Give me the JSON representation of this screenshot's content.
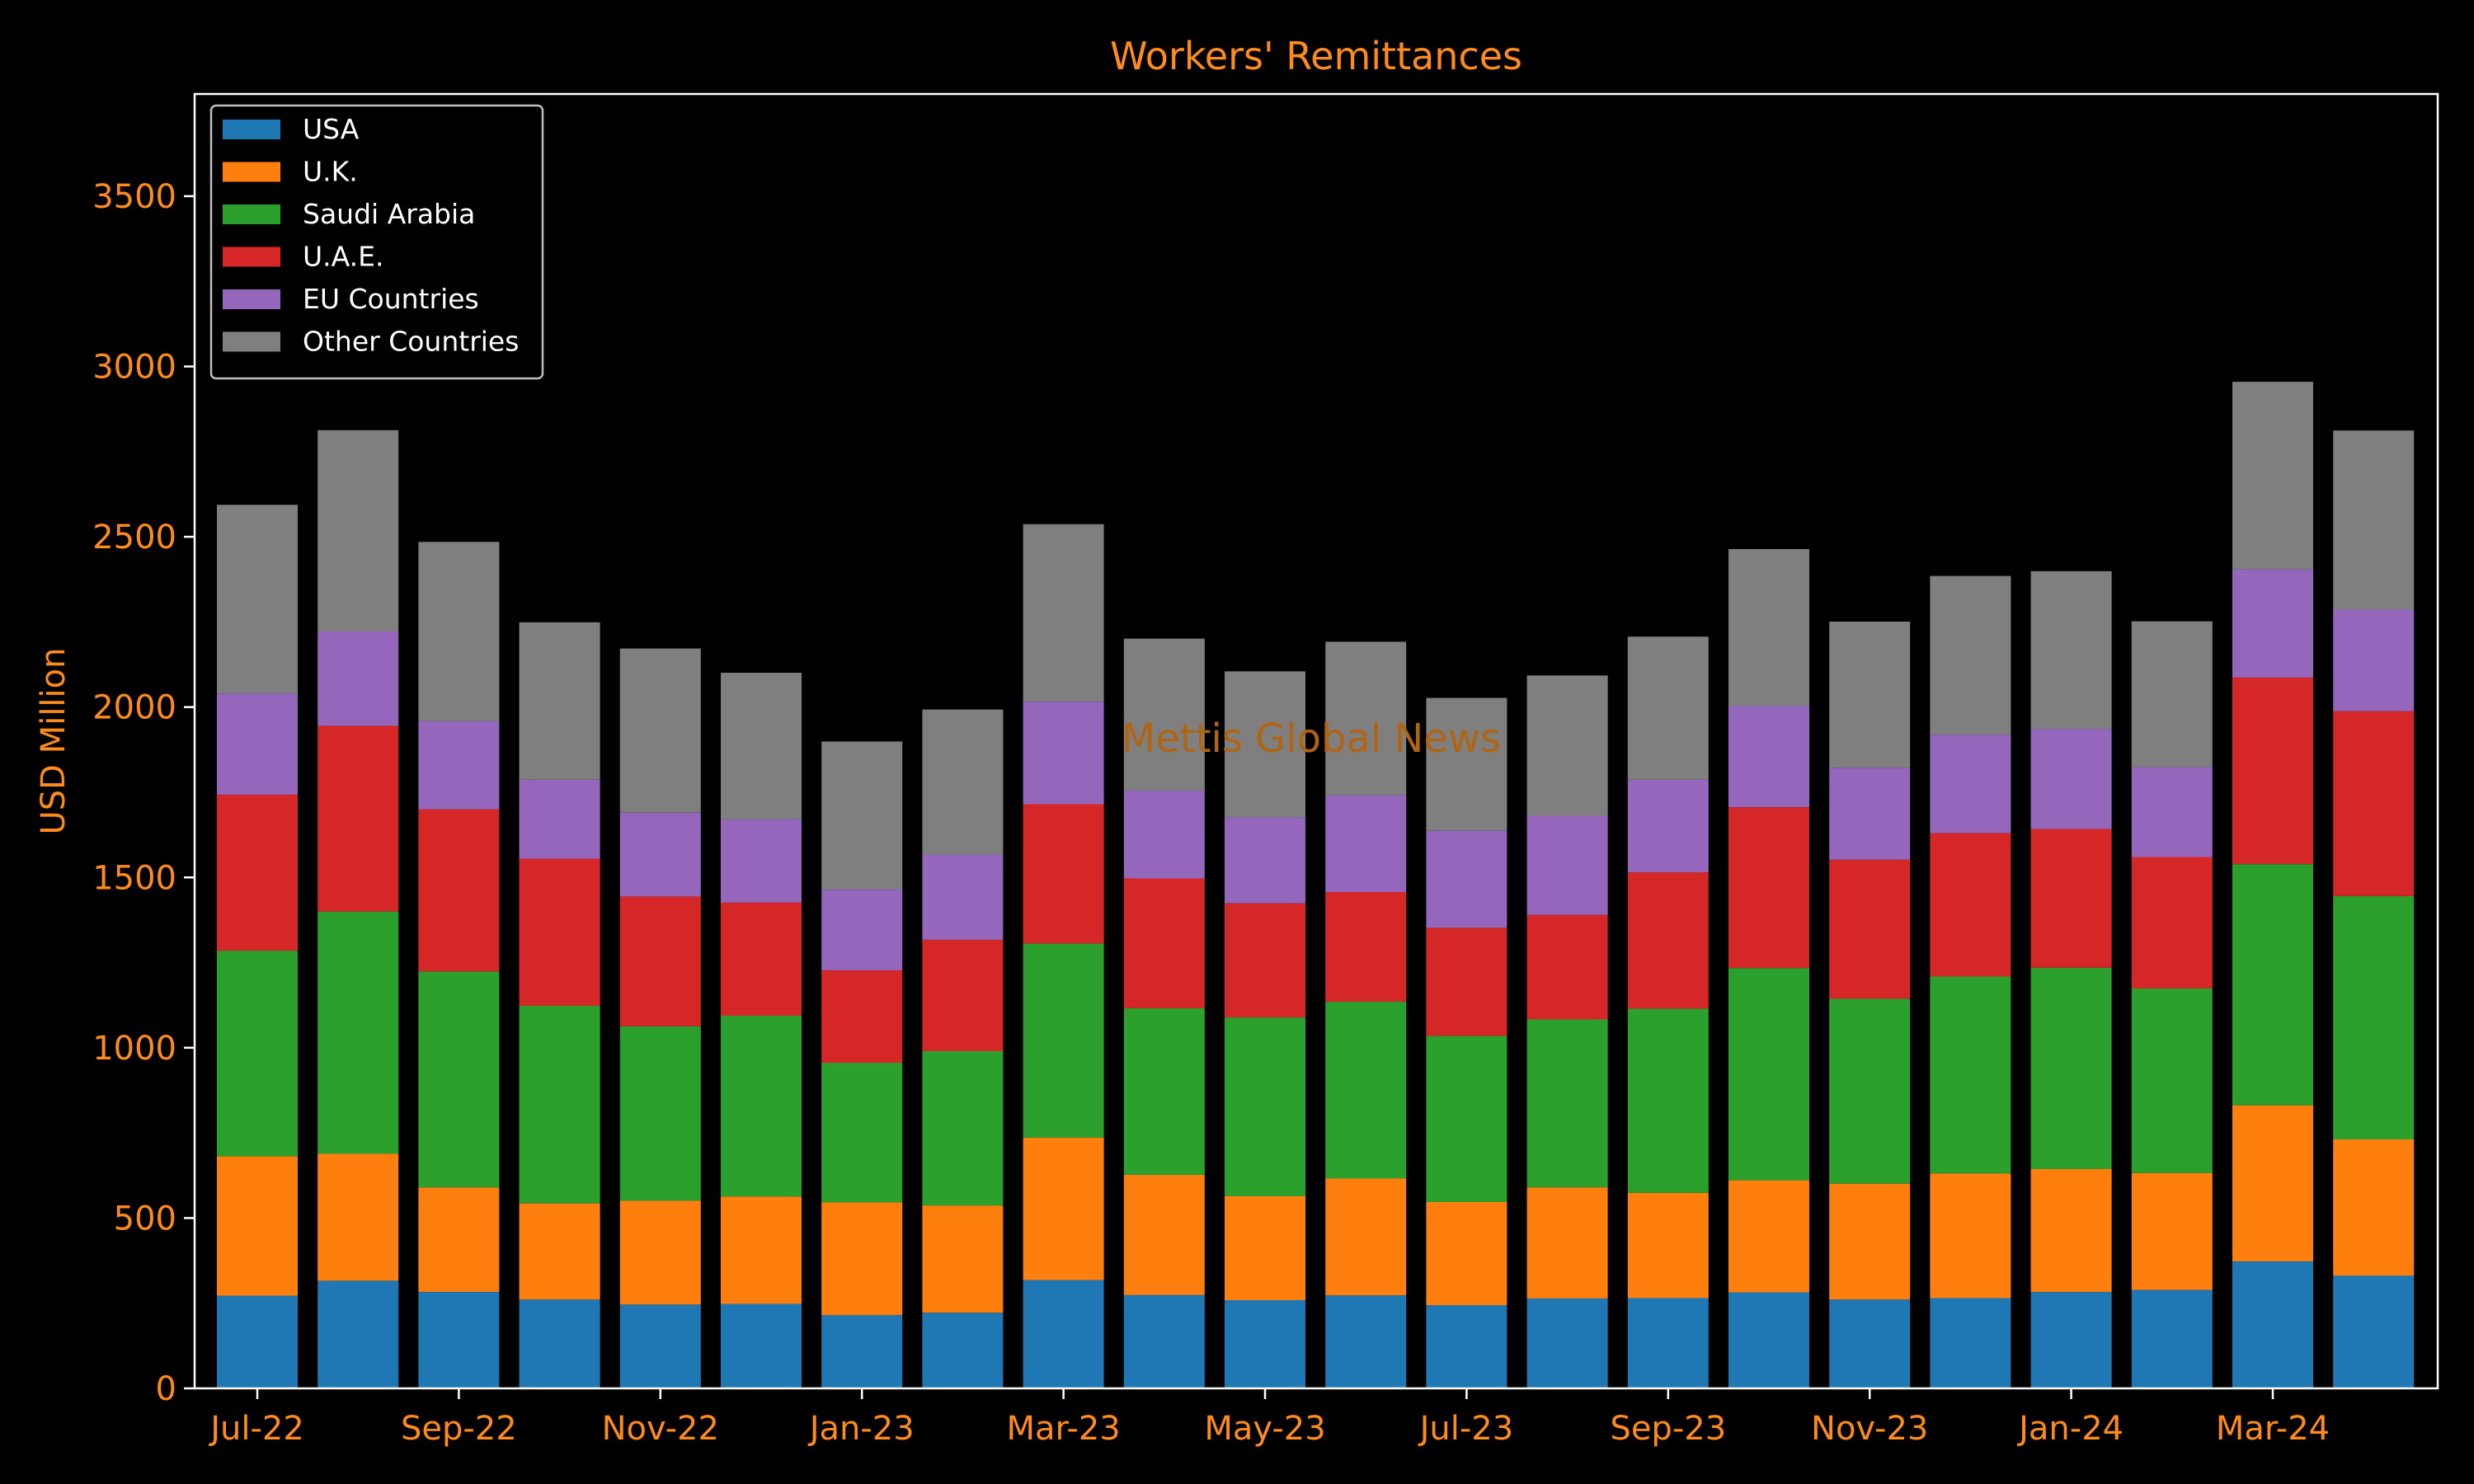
{
  "colors": {
    "background": "#000000",
    "axis": "#ffffff",
    "text_accent": "#ff8c1a",
    "watermark": "#b06512"
  },
  "watermark": "Mettis Global News",
  "chart_data": {
    "type": "bar",
    "stacked": true,
    "title": "Workers' Remittances",
    "xlabel": "",
    "ylabel": "USD Million",
    "ylim": [
      0,
      3800
    ],
    "yticks": [
      0,
      500,
      1000,
      1500,
      2000,
      2500,
      3000,
      3500
    ],
    "grid": false,
    "legend_position": "top-left",
    "categories": [
      "Jul-22",
      "Aug-22",
      "Sep-22",
      "Oct-22",
      "Nov-22",
      "Dec-22",
      "Jan-23",
      "Feb-23",
      "Mar-23",
      "Apr-23",
      "May-23",
      "Jun-23",
      "Jul-23",
      "Aug-23",
      "Sep-23",
      "Oct-23",
      "Nov-23",
      "Dec-23",
      "Jan-24",
      "Feb-24",
      "Mar-24",
      "Apr-24"
    ],
    "x_tick_labels": [
      "Jul-22",
      "Sep-22",
      "Nov-22",
      "Jan-23",
      "Mar-23",
      "May-23",
      "Jul-23",
      "Sep-23",
      "Nov-23",
      "Jan-24",
      "Mar-24"
    ],
    "series": [
      {
        "name": "USA",
        "color": "#1f77b4",
        "values": [
          272,
          316,
          283,
          261,
          246,
          248,
          215,
          222,
          318,
          274,
          259,
          273,
          244,
          264,
          265,
          282,
          261,
          265,
          283,
          289,
          373,
          331
        ]
      },
      {
        "name": "U.K.",
        "color": "#ff7f0e",
        "values": [
          409,
          373,
          307,
          282,
          305,
          315,
          331,
          315,
          418,
          353,
          305,
          343,
          303,
          326,
          309,
          329,
          340,
          366,
          361,
          343,
          458,
          400
        ]
      },
      {
        "name": "Saudi Arabia",
        "color": "#2ca02c",
        "values": [
          604,
          711,
          634,
          580,
          512,
          531,
          410,
          453,
          570,
          489,
          525,
          519,
          488,
          493,
          541,
          623,
          543,
          578,
          591,
          542,
          708,
          714
        ]
      },
      {
        "name": "U.A.E.",
        "color": "#d62728",
        "values": [
          458,
          545,
          476,
          432,
          381,
          332,
          271,
          327,
          409,
          381,
          335,
          322,
          317,
          307,
          400,
          472,
          408,
          421,
          407,
          386,
          548,
          543
        ]
      },
      {
        "name": "EU Countries",
        "color": "#9467bd",
        "values": [
          297,
          277,
          259,
          232,
          246,
          245,
          237,
          250,
          301,
          258,
          253,
          284,
          285,
          291,
          272,
          297,
          270,
          289,
          294,
          264,
          317,
          298
        ]
      },
      {
        "name": "Other Countries",
        "color": "#7f7f7f",
        "values": [
          554,
          591,
          526,
          462,
          482,
          430,
          435,
          426,
          521,
          446,
          428,
          451,
          390,
          412,
          420,
          461,
          429,
          466,
          463,
          428,
          551,
          526
        ]
      }
    ]
  }
}
